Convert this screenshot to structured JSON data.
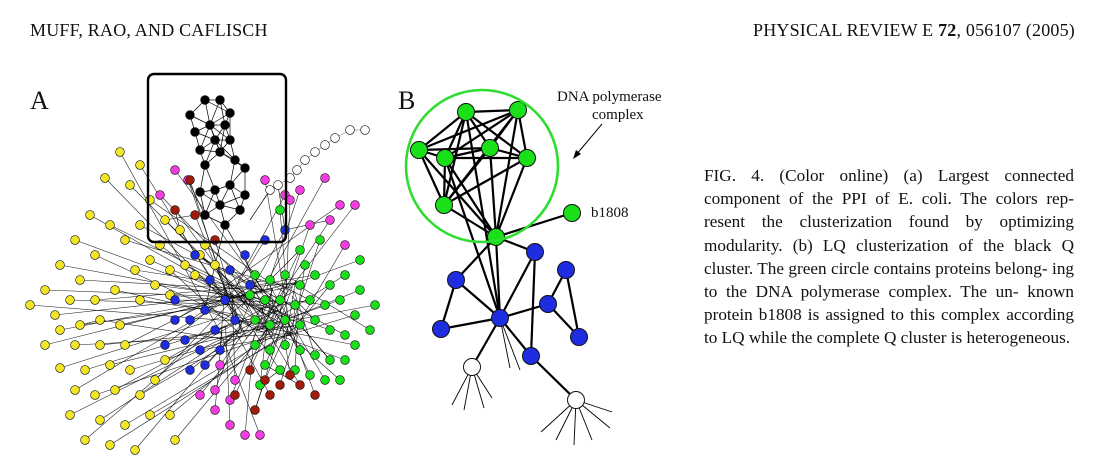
{
  "header": {
    "authors": "MUFF, RAO, AND CAFLISCH",
    "journal": "PHYSICAL REVIEW E",
    "volume": "72",
    "article": ", 056107 (2005)"
  },
  "figure": {
    "panel_a_label": "A",
    "panel_b_label": "B",
    "dna_label_line1": "DNA polymerase",
    "dna_label_line2": "complex",
    "b1808_label": "b1808",
    "colors": {
      "yellow": "#f2e626",
      "blue": "#1e2de0",
      "green": "#19e019",
      "magenta": "#f23ce0",
      "darkred": "#a11a0a",
      "black": "#000000",
      "white": "#ffffff",
      "circle": "#2fdc2f"
    }
  },
  "caption": {
    "lines": [
      "FIG. 4. (Color online) (a) Largest connected",
      "component of the PPI of E. coli. The colors rep-",
      "resent the clusterization found by optimizing",
      "modularity. (b) LQ clusterization of the black Q",
      "cluster. The green circle contains proteins belong-",
      "ing to the DNA polymerase complex. The un-",
      "known protein b1808 is assigned to this complex",
      "according to LQ while the complete Q cluster is",
      "heterogeneous."
    ]
  }
}
